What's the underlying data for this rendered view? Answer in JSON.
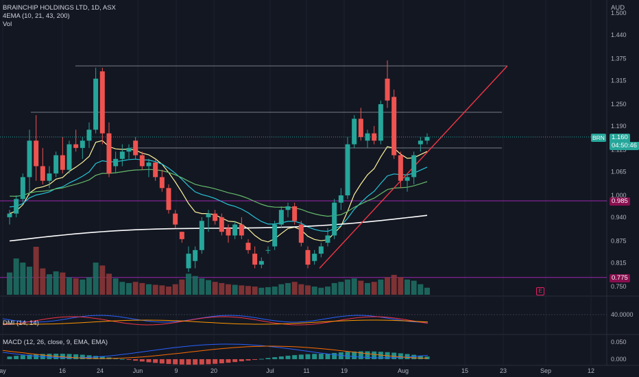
{
  "header": {
    "symbol_line": "BRAINCHIP HOLDINGS LTD, 1D, ASX",
    "indicator_line": "4EMA (10, 21, 43, 200)",
    "volume_line": "Vol",
    "currency": "AUD"
  },
  "price_scale": [
    "1.500",
    "1.440",
    "1.375",
    "1.315",
    "1.250",
    "1.190",
    "1.125",
    "1.065",
    "1.000",
    "0.940",
    "0.875",
    "0.815",
    "0.750"
  ],
  "last_price": {
    "symbol": "BRN",
    "price": "1.160",
    "countdown": "04:50:46",
    "color": "#26a69a"
  },
  "levels": [
    {
      "label": "0.985",
      "color": "#9c27b0",
      "tag_color": "#880e4f"
    },
    {
      "label": "0.775",
      "color": "#9c27b0",
      "tag_color": "#880e4f"
    }
  ],
  "dmi": {
    "label": "DMI (14, 14)",
    "scale": [
      "40.0000"
    ]
  },
  "macd": {
    "label": "MACD (12, 26, close, 9, EMA, EMA)",
    "scale": [
      "0.050",
      "0.000"
    ]
  },
  "x_axis": [
    "ay",
    "16",
    "24",
    "Jun",
    "9",
    "20",
    "Jul",
    "11",
    "19",
    "Aug",
    "15",
    "23",
    "Sep",
    "12"
  ],
  "event_marker": "E",
  "colors": {
    "up": "#26a69a",
    "down": "#ef5350",
    "ema10": "#fff59d",
    "ema21": "#26c6da",
    "ema43": "#66bb6a",
    "ema200": "#ffffff",
    "trend": "#f23645"
  },
  "chart_data": {
    "type": "candlestick",
    "title": "BRAINCHIP HOLDINGS LTD, 1D, ASX",
    "ylim": [
      0.73,
      1.52
    ],
    "candles": [
      {
        "o": 0.94,
        "h": 0.96,
        "l": 0.92,
        "c": 0.95
      },
      {
        "o": 0.95,
        "h": 1.0,
        "l": 0.94,
        "c": 0.99
      },
      {
        "o": 0.99,
        "h": 1.06,
        "l": 0.98,
        "c": 1.05
      },
      {
        "o": 1.05,
        "h": 1.18,
        "l": 1.0,
        "c": 1.15
      },
      {
        "o": 1.15,
        "h": 1.22,
        "l": 1.04,
        "c": 1.08
      },
      {
        "o": 1.08,
        "h": 1.13,
        "l": 1.03,
        "c": 1.04
      },
      {
        "o": 1.04,
        "h": 1.08,
        "l": 1.02,
        "c": 1.06
      },
      {
        "o": 1.06,
        "h": 1.12,
        "l": 1.05,
        "c": 1.11
      },
      {
        "o": 1.11,
        "h": 1.16,
        "l": 1.06,
        "c": 1.07
      },
      {
        "o": 1.07,
        "h": 1.15,
        "l": 1.06,
        "c": 1.14
      },
      {
        "o": 1.14,
        "h": 1.18,
        "l": 1.12,
        "c": 1.13
      },
      {
        "o": 1.13,
        "h": 1.16,
        "l": 1.1,
        "c": 1.15
      },
      {
        "o": 1.15,
        "h": 1.2,
        "l": 1.13,
        "c": 1.18
      },
      {
        "o": 1.18,
        "h": 1.35,
        "l": 1.17,
        "c": 1.32
      },
      {
        "o": 1.34,
        "h": 1.35,
        "l": 1.14,
        "c": 1.17
      },
      {
        "o": 1.17,
        "h": 1.2,
        "l": 1.05,
        "c": 1.06
      },
      {
        "o": 1.08,
        "h": 1.12,
        "l": 1.06,
        "c": 1.1
      },
      {
        "o": 1.1,
        "h": 1.14,
        "l": 1.08,
        "c": 1.12
      },
      {
        "o": 1.12,
        "h": 1.14,
        "l": 1.1,
        "c": 1.13
      },
      {
        "o": 1.15,
        "h": 1.16,
        "l": 1.1,
        "c": 1.11
      },
      {
        "o": 1.11,
        "h": 1.12,
        "l": 1.07,
        "c": 1.08
      },
      {
        "o": 1.08,
        "h": 1.1,
        "l": 1.05,
        "c": 1.09
      },
      {
        "o": 1.09,
        "h": 1.1,
        "l": 1.04,
        "c": 1.05
      },
      {
        "o": 1.05,
        "h": 1.07,
        "l": 1.01,
        "c": 1.02
      },
      {
        "o": 1.02,
        "h": 1.03,
        "l": 0.95,
        "c": 0.96
      },
      {
        "o": 0.95,
        "h": 0.96,
        "l": 0.91,
        "c": 0.92
      },
      {
        "o": 0.9,
        "h": 0.9,
        "l": 0.87,
        "c": 0.88
      },
      {
        "o": 0.8,
        "h": 0.86,
        "l": 0.79,
        "c": 0.84
      },
      {
        "o": 0.82,
        "h": 0.86,
        "l": 0.8,
        "c": 0.85
      },
      {
        "o": 0.85,
        "h": 0.94,
        "l": 0.84,
        "c": 0.93
      },
      {
        "o": 0.94,
        "h": 0.96,
        "l": 0.9,
        "c": 0.95
      },
      {
        "o": 0.95,
        "h": 0.96,
        "l": 0.92,
        "c": 0.93
      },
      {
        "o": 0.94,
        "h": 0.95,
        "l": 0.89,
        "c": 0.9
      },
      {
        "o": 0.91,
        "h": 0.92,
        "l": 0.87,
        "c": 0.89
      },
      {
        "o": 0.89,
        "h": 0.93,
        "l": 0.88,
        "c": 0.92
      },
      {
        "o": 0.92,
        "h": 0.94,
        "l": 0.88,
        "c": 0.89
      },
      {
        "o": 0.87,
        "h": 0.88,
        "l": 0.84,
        "c": 0.85
      },
      {
        "o": 0.84,
        "h": 0.86,
        "l": 0.8,
        "c": 0.81
      },
      {
        "o": 0.81,
        "h": 0.83,
        "l": 0.8,
        "c": 0.82
      },
      {
        "o": 0.85,
        "h": 0.86,
        "l": 0.84,
        "c": 0.85
      },
      {
        "o": 0.86,
        "h": 0.93,
        "l": 0.85,
        "c": 0.92
      },
      {
        "o": 0.92,
        "h": 0.97,
        "l": 0.91,
        "c": 0.96
      },
      {
        "o": 0.96,
        "h": 0.98,
        "l": 0.94,
        "c": 0.97
      },
      {
        "o": 0.97,
        "h": 0.98,
        "l": 0.92,
        "c": 0.93
      },
      {
        "o": 0.92,
        "h": 0.93,
        "l": 0.86,
        "c": 0.87
      },
      {
        "o": 0.85,
        "h": 0.86,
        "l": 0.8,
        "c": 0.81
      },
      {
        "o": 0.82,
        "h": 0.85,
        "l": 0.81,
        "c": 0.84
      },
      {
        "o": 0.84,
        "h": 0.87,
        "l": 0.83,
        "c": 0.86
      },
      {
        "o": 0.87,
        "h": 0.91,
        "l": 0.86,
        "c": 0.89
      },
      {
        "o": 0.89,
        "h": 0.99,
        "l": 0.88,
        "c": 0.98
      },
      {
        "o": 0.98,
        "h": 1.02,
        "l": 0.96,
        "c": 1.0
      },
      {
        "o": 1.0,
        "h": 1.16,
        "l": 0.99,
        "c": 1.14
      },
      {
        "o": 1.14,
        "h": 1.22,
        "l": 1.13,
        "c": 1.21
      },
      {
        "o": 1.21,
        "h": 1.24,
        "l": 1.15,
        "c": 1.16
      },
      {
        "o": 1.15,
        "h": 1.18,
        "l": 1.13,
        "c": 1.17
      },
      {
        "o": 1.17,
        "h": 1.19,
        "l": 1.14,
        "c": 1.15
      },
      {
        "o": 1.15,
        "h": 1.26,
        "l": 1.14,
        "c": 1.25
      },
      {
        "o": 1.32,
        "h": 1.37,
        "l": 1.24,
        "c": 1.26
      },
      {
        "o": 1.27,
        "h": 1.29,
        "l": 1.1,
        "c": 1.11
      },
      {
        "o": 1.11,
        "h": 1.12,
        "l": 1.02,
        "c": 1.04
      },
      {
        "o": 1.04,
        "h": 1.06,
        "l": 1.01,
        "c": 1.05
      },
      {
        "o": 1.05,
        "h": 1.12,
        "l": 1.03,
        "c": 1.11
      },
      {
        "o": 1.14,
        "h": 1.16,
        "l": 1.12,
        "c": 1.15
      },
      {
        "o": 1.15,
        "h": 1.17,
        "l": 1.14,
        "c": 1.16
      }
    ],
    "volume": [
      38,
      62,
      55,
      48,
      82,
      45,
      35,
      40,
      38,
      30,
      28,
      26,
      30,
      55,
      50,
      36,
      28,
      22,
      20,
      22,
      20,
      18,
      17,
      16,
      14,
      18,
      26,
      36,
      32,
      28,
      25,
      22,
      20,
      18,
      17,
      16,
      15,
      14,
      12,
      13,
      14,
      18,
      20,
      22,
      18,
      16,
      14,
      12,
      14,
      20,
      22,
      26,
      28,
      24,
      20,
      22,
      26,
      30,
      34,
      30,
      26,
      24,
      18,
      12
    ]
  }
}
